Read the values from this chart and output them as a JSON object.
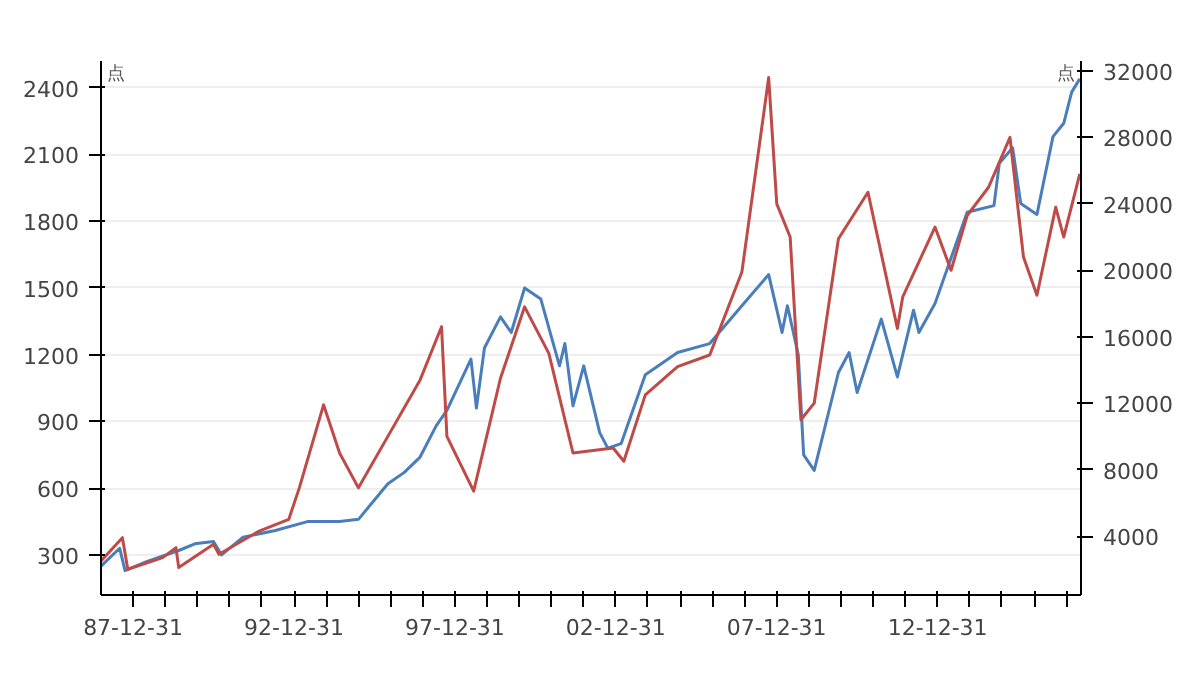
{
  "chart_data": {
    "type": "line",
    "ylabel": "点",
    "y2label": "点",
    "xlim": [
      "1987-01-01",
      "2017-06-15"
    ],
    "xticks": [
      {
        "value": "1987-12-31",
        "label": "87-12-31"
      },
      {
        "value": "1988-12-31",
        "label": null
      },
      {
        "value": "1989-12-31",
        "label": null
      },
      {
        "value": "1990-12-31",
        "label": null
      },
      {
        "value": "1991-12-31",
        "label": null
      },
      {
        "value": "1992-12-31",
        "label": "92-12-31"
      },
      {
        "value": "1993-12-31",
        "label": null
      },
      {
        "value": "1994-12-31",
        "label": null
      },
      {
        "value": "1995-12-31",
        "label": null
      },
      {
        "value": "1996-12-31",
        "label": null
      },
      {
        "value": "1997-12-31",
        "label": "97-12-31"
      },
      {
        "value": "1998-12-31",
        "label": null
      },
      {
        "value": "1999-12-31",
        "label": null
      },
      {
        "value": "2000-12-31",
        "label": null
      },
      {
        "value": "2001-12-31",
        "label": null
      },
      {
        "value": "2002-12-31",
        "label": "02-12-31"
      },
      {
        "value": "2003-12-31",
        "label": null
      },
      {
        "value": "2004-12-31",
        "label": null
      },
      {
        "value": "2005-12-31",
        "label": null
      },
      {
        "value": "2006-12-31",
        "label": null
      },
      {
        "value": "2007-12-31",
        "label": "07-12-31"
      },
      {
        "value": "2008-12-31",
        "label": null
      },
      {
        "value": "2009-12-31",
        "label": null
      },
      {
        "value": "2010-12-31",
        "label": null
      },
      {
        "value": "2011-12-31",
        "label": null
      },
      {
        "value": "2012-12-31",
        "label": "12-12-31"
      },
      {
        "value": "2013-12-31",
        "label": null
      },
      {
        "value": "2014-12-31",
        "label": null
      },
      {
        "value": "2015-12-31",
        "label": null
      },
      {
        "value": "2016-12-31",
        "label": null
      }
    ],
    "ylim": [
      120,
      2520
    ],
    "yticks": [
      300,
      600,
      900,
      1200,
      1500,
      1800,
      2100,
      2400
    ],
    "y2lim": [
      450,
      32600
    ],
    "y2ticks": [
      4000,
      8000,
      12000,
      16000,
      20000,
      24000,
      28000,
      32000
    ],
    "grid": "y",
    "line_style": "solid",
    "series": [
      {
        "color": "#4a7ebb",
        "x": [
          "1987-01",
          "1987-08",
          "1987-10",
          "1988-06",
          "1989-06",
          "1989-12",
          "1990-07",
          "1990-10",
          "1991-06",
          "1992-06",
          "1993-06",
          "1994-06",
          "1995-01",
          "1995-12",
          "1996-06",
          "1996-12",
          "1997-06",
          "1997-10",
          "1998-07",
          "1998-09",
          "1998-12",
          "1999-06",
          "1999-10",
          "2000-03",
          "2000-09",
          "2001-04",
          "2001-06",
          "2001-09",
          "2002-01",
          "2002-07",
          "2002-10",
          "2003-03",
          "2003-12",
          "2004-12",
          "2005-12",
          "2006-12",
          "2007-10",
          "2008-03",
          "2008-05",
          "2008-09",
          "2008-11",
          "2009-03",
          "2009-12",
          "2010-04",
          "2010-07",
          "2011-04",
          "2011-10",
          "2012-04",
          "2012-06",
          "2012-12",
          "2013-12",
          "2014-10",
          "2014-12",
          "2015-05",
          "2015-08",
          "2016-02",
          "2016-08",
          "2016-12",
          "2017-03",
          "2017-06"
        ],
        "values": [
          250,
          330,
          230,
          270,
          320,
          350,
          360,
          300,
          380,
          410,
          450,
          450,
          460,
          620,
          670,
          740,
          880,
          950,
          1180,
          960,
          1230,
          1370,
          1300,
          1500,
          1450,
          1150,
          1250,
          970,
          1150,
          850,
          780,
          800,
          1110,
          1210,
          1250,
          1420,
          1560,
          1300,
          1420,
          1200,
          750,
          680,
          1120,
          1210,
          1030,
          1360,
          1100,
          1400,
          1300,
          1430,
          1840,
          1870,
          2060,
          2130,
          1880,
          1830,
          2180,
          2240,
          2380,
          2440
        ]
      },
      {
        "color": "#be4b48",
        "axis": "y2",
        "x": [
          "1987-01",
          "1987-09",
          "1987-11",
          "1988-12",
          "1989-05",
          "1989-06",
          "1990-07",
          "1990-09",
          "1991-12",
          "1992-11",
          "1993-03",
          "1993-12",
          "1994-06",
          "1995-01",
          "1995-12",
          "1996-12",
          "1997-08",
          "1997-10",
          "1998-08",
          "1999-06",
          "2000-03",
          "2000-12",
          "2001-09",
          "2002-12",
          "2003-04",
          "2003-12",
          "2004-12",
          "2005-12",
          "2006-12",
          "2007-10",
          "2008-01",
          "2008-06",
          "2008-10",
          "2009-03",
          "2009-12",
          "2010-11",
          "2011-10",
          "2011-12",
          "2012-12",
          "2013-06",
          "2013-12",
          "2014-08",
          "2015-04",
          "2015-09",
          "2016-02",
          "2016-09",
          "2016-12",
          "2017-06"
        ],
        "values": [
          2500,
          3900,
          2000,
          2700,
          3300,
          2100,
          3500,
          2900,
          4300,
          5000,
          6900,
          11900,
          9000,
          6900,
          10000,
          13400,
          16600,
          10000,
          6700,
          13500,
          17800,
          15000,
          9000,
          9300,
          8500,
          12500,
          14200,
          14900,
          19900,
          31600,
          24000,
          22000,
          11000,
          12000,
          21900,
          24700,
          16500,
          18400,
          22600,
          20000,
          23300,
          25000,
          28000,
          20800,
          18500,
          23800,
          22000,
          25800
        ]
      }
    ]
  }
}
